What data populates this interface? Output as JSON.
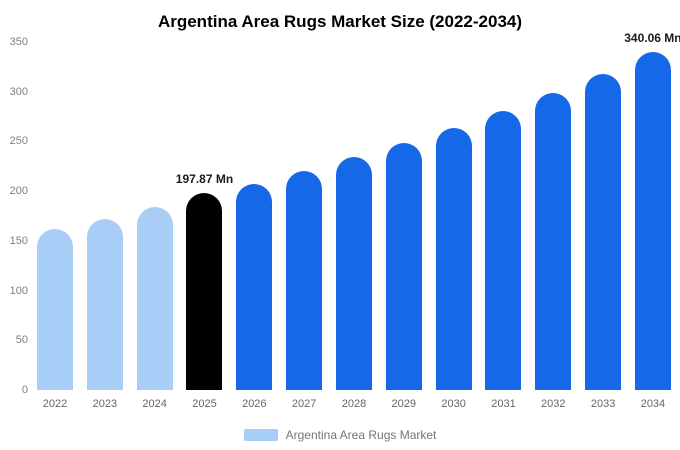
{
  "chart_data": {
    "type": "bar",
    "title": "Argentina Area Rugs Market Size (2022-2034)",
    "categories": [
      "2022",
      "2023",
      "2024",
      "2025",
      "2026",
      "2027",
      "2028",
      "2029",
      "2030",
      "2031",
      "2032",
      "2033",
      "2034"
    ],
    "values": [
      161.5,
      172.5,
      184,
      197.87,
      207.5,
      220,
      234,
      248.5,
      263.5,
      280.5,
      298.5,
      318,
      340.06
    ],
    "unit": "Mn",
    "ylim": [
      0,
      350
    ],
    "yticks": [
      0,
      50,
      100,
      150,
      200,
      250,
      300,
      350
    ],
    "grid": false,
    "bar_color_keys": [
      "light",
      "light",
      "light",
      "highlight",
      "primary",
      "primary",
      "primary",
      "primary",
      "primary",
      "primary",
      "primary",
      "primary",
      "primary"
    ],
    "colors": {
      "light": "#a8cdf6",
      "highlight": "#000000",
      "primary": "#1568e8"
    },
    "annotations": [
      {
        "category": "2025",
        "text": "197.87 Mn"
      },
      {
        "category": "2034",
        "text": "340.06 Mn"
      }
    ],
    "legend": {
      "label": "Argentina Area Rugs Market",
      "swatch_color_key": "light",
      "position": "bottom"
    }
  }
}
